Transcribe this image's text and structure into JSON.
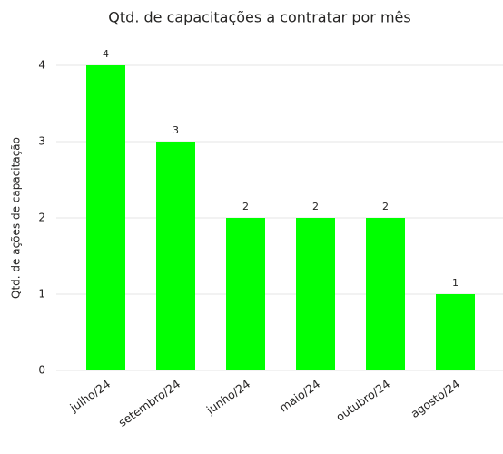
{
  "chart_data": {
    "type": "bar",
    "title": "Qtd. de capacitações a contratar por mês",
    "y_label": "Qtd. de ações de capacitação",
    "categories": [
      "julho/24",
      "setembro/24",
      "junho/24",
      "maio/24",
      "outubro/24",
      "agosto/24"
    ],
    "values": [
      4,
      3,
      2,
      2,
      2,
      1
    ],
    "color": "#00ff00",
    "ylim": [
      0,
      4
    ],
    "yticks": [
      0,
      1,
      2,
      3,
      4
    ],
    "grid": true
  }
}
